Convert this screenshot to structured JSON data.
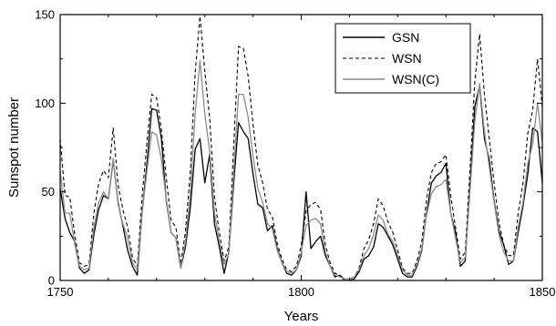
{
  "chart_data": {
    "type": "line",
    "title": "",
    "xlabel": "Years",
    "ylabel": "Sunspot number",
    "xlim": [
      1750,
      1850
    ],
    "ylim": [
      0,
      150
    ],
    "x_ticks": [
      1750,
      1800,
      1850
    ],
    "y_ticks": [
      0,
      50,
      100,
      150
    ],
    "grid": false,
    "legend_position": "top-right",
    "series": [
      {
        "name": "GSN",
        "color": "#000000",
        "style": "solid",
        "points": [
          [
            1750,
            52
          ],
          [
            1751,
            35
          ],
          [
            1752,
            27
          ],
          [
            1753,
            22
          ],
          [
            1754,
            7
          ],
          [
            1755,
            4
          ],
          [
            1756,
            6
          ],
          [
            1757,
            26
          ],
          [
            1758,
            40
          ],
          [
            1759,
            48
          ],
          [
            1760,
            46
          ],
          [
            1761,
            68
          ],
          [
            1762,
            44
          ],
          [
            1763,
            31
          ],
          [
            1764,
            17
          ],
          [
            1765,
            8
          ],
          [
            1766,
            3
          ],
          [
            1767,
            38
          ],
          [
            1768,
            66
          ],
          [
            1769,
            97
          ],
          [
            1770,
            96
          ],
          [
            1771,
            80
          ],
          [
            1772,
            45
          ],
          [
            1773,
            27
          ],
          [
            1774,
            24
          ],
          [
            1775,
            7
          ],
          [
            1776,
            19
          ],
          [
            1777,
            41
          ],
          [
            1778,
            74
          ],
          [
            1779,
            80
          ],
          [
            1780,
            55
          ],
          [
            1781,
            71
          ],
          [
            1782,
            32
          ],
          [
            1783,
            19
          ],
          [
            1784,
            4
          ],
          [
            1785,
            16
          ],
          [
            1786,
            55
          ],
          [
            1787,
            89
          ],
          [
            1788,
            84
          ],
          [
            1789,
            80
          ],
          [
            1790,
            60
          ],
          [
            1791,
            43
          ],
          [
            1792,
            41
          ],
          [
            1793,
            28
          ],
          [
            1794,
            31
          ],
          [
            1795,
            18
          ],
          [
            1796,
            10
          ],
          [
            1797,
            4
          ],
          [
            1798,
            3
          ],
          [
            1799,
            6
          ],
          [
            1800,
            14
          ],
          [
            1801,
            50
          ],
          [
            1802,
            18
          ],
          [
            1803,
            22
          ],
          [
            1804,
            25
          ],
          [
            1805,
            14
          ],
          [
            1806,
            8
          ],
          [
            1807,
            2
          ],
          [
            1808,
            3
          ],
          [
            1809,
            0
          ],
          [
            1810,
            0
          ],
          [
            1811,
            1
          ],
          [
            1812,
            5
          ],
          [
            1813,
            12
          ],
          [
            1814,
            14
          ],
          [
            1815,
            19
          ],
          [
            1816,
            32
          ],
          [
            1817,
            30
          ],
          [
            1818,
            25
          ],
          [
            1819,
            20
          ],
          [
            1820,
            12
          ],
          [
            1821,
            4
          ],
          [
            1822,
            2
          ],
          [
            1823,
            2
          ],
          [
            1824,
            8
          ],
          [
            1825,
            17
          ],
          [
            1826,
            38
          ],
          [
            1827,
            55
          ],
          [
            1828,
            59
          ],
          [
            1829,
            61
          ],
          [
            1830,
            66
          ],
          [
            1831,
            38
          ],
          [
            1832,
            27
          ],
          [
            1833,
            8
          ],
          [
            1834,
            11
          ],
          [
            1835,
            53
          ],
          [
            1836,
            98
          ],
          [
            1837,
            110
          ],
          [
            1838,
            80
          ],
          [
            1839,
            68
          ],
          [
            1840,
            45
          ],
          [
            1841,
            28
          ],
          [
            1842,
            20
          ],
          [
            1843,
            9
          ],
          [
            1844,
            11
          ],
          [
            1845,
            27
          ],
          [
            1846,
            42
          ],
          [
            1847,
            60
          ],
          [
            1848,
            86
          ],
          [
            1849,
            84
          ],
          [
            1850,
            55
          ]
        ]
      },
      {
        "name": "WSN",
        "color": "#000000",
        "style": "dashed",
        "points": [
          [
            1750,
            80
          ],
          [
            1751,
            48
          ],
          [
            1752,
            47
          ],
          [
            1753,
            26
          ],
          [
            1754,
            10
          ],
          [
            1755,
            8
          ],
          [
            1756,
            9
          ],
          [
            1757,
            38
          ],
          [
            1758,
            55
          ],
          [
            1759,
            62
          ],
          [
            1760,
            58
          ],
          [
            1761,
            86
          ],
          [
            1762,
            54
          ],
          [
            1763,
            40
          ],
          [
            1764,
            30
          ],
          [
            1765,
            13
          ],
          [
            1766,
            8
          ],
          [
            1767,
            47
          ],
          [
            1768,
            78
          ],
          [
            1769,
            105
          ],
          [
            1770,
            103
          ],
          [
            1771,
            85
          ],
          [
            1772,
            58
          ],
          [
            1773,
            34
          ],
          [
            1774,
            30
          ],
          [
            1775,
            9
          ],
          [
            1776,
            28
          ],
          [
            1777,
            61
          ],
          [
            1778,
            117
          ],
          [
            1779,
            149
          ],
          [
            1780,
            118
          ],
          [
            1781,
            92
          ],
          [
            1782,
            47
          ],
          [
            1783,
            27
          ],
          [
            1784,
            11
          ],
          [
            1785,
            19
          ],
          [
            1786,
            76
          ],
          [
            1787,
            132
          ],
          [
            1788,
            131
          ],
          [
            1789,
            115
          ],
          [
            1790,
            88
          ],
          [
            1791,
            65
          ],
          [
            1792,
            55
          ],
          [
            1793,
            40
          ],
          [
            1794,
            36
          ],
          [
            1795,
            21
          ],
          [
            1796,
            12
          ],
          [
            1797,
            6
          ],
          [
            1798,
            5
          ],
          [
            1799,
            8
          ],
          [
            1800,
            20
          ],
          [
            1801,
            39
          ],
          [
            1802,
            43
          ],
          [
            1803,
            44
          ],
          [
            1804,
            40
          ],
          [
            1805,
            20
          ],
          [
            1806,
            10
          ],
          [
            1807,
            4
          ],
          [
            1808,
            3
          ],
          [
            1809,
            1
          ],
          [
            1810,
            1
          ],
          [
            1811,
            2
          ],
          [
            1812,
            7
          ],
          [
            1813,
            18
          ],
          [
            1814,
            23
          ],
          [
            1815,
            32
          ],
          [
            1816,
            46
          ],
          [
            1817,
            42
          ],
          [
            1818,
            33
          ],
          [
            1819,
            27
          ],
          [
            1820,
            17
          ],
          [
            1821,
            7
          ],
          [
            1822,
            4
          ],
          [
            1823,
            4
          ],
          [
            1824,
            11
          ],
          [
            1825,
            22
          ],
          [
            1826,
            46
          ],
          [
            1827,
            61
          ],
          [
            1828,
            66
          ],
          [
            1829,
            67
          ],
          [
            1830,
            71
          ],
          [
            1831,
            48
          ],
          [
            1832,
            30
          ],
          [
            1833,
            12
          ],
          [
            1834,
            16
          ],
          [
            1835,
            62
          ],
          [
            1836,
            112
          ],
          [
            1837,
            139
          ],
          [
            1838,
            105
          ],
          [
            1839,
            80
          ],
          [
            1840,
            55
          ],
          [
            1841,
            33
          ],
          [
            1842,
            20
          ],
          [
            1843,
            14
          ],
          [
            1844,
            14
          ],
          [
            1845,
            38
          ],
          [
            1846,
            55
          ],
          [
            1847,
            83
          ],
          [
            1848,
            96
          ],
          [
            1849,
            125
          ],
          [
            1850,
            98
          ]
        ]
      },
      {
        "name": "WSN(C)",
        "color": "#8c8c8c",
        "style": "solid",
        "points": [
          [
            1750,
            62
          ],
          [
            1751,
            38
          ],
          [
            1752,
            38
          ],
          [
            1753,
            21
          ],
          [
            1754,
            8
          ],
          [
            1755,
            6
          ],
          [
            1756,
            7
          ],
          [
            1757,
            30
          ],
          [
            1758,
            44
          ],
          [
            1759,
            50
          ],
          [
            1760,
            46
          ],
          [
            1761,
            69
          ],
          [
            1762,
            43
          ],
          [
            1763,
            32
          ],
          [
            1764,
            24
          ],
          [
            1765,
            10
          ],
          [
            1766,
            6
          ],
          [
            1767,
            38
          ],
          [
            1768,
            62
          ],
          [
            1769,
            84
          ],
          [
            1770,
            82
          ],
          [
            1771,
            68
          ],
          [
            1772,
            46
          ],
          [
            1773,
            27
          ],
          [
            1774,
            24
          ],
          [
            1775,
            7
          ],
          [
            1776,
            22
          ],
          [
            1777,
            49
          ],
          [
            1778,
            94
          ],
          [
            1779,
            124
          ],
          [
            1780,
            94
          ],
          [
            1781,
            73
          ],
          [
            1782,
            38
          ],
          [
            1783,
            22
          ],
          [
            1784,
            9
          ],
          [
            1785,
            15
          ],
          [
            1786,
            61
          ],
          [
            1787,
            105
          ],
          [
            1788,
            105
          ],
          [
            1789,
            92
          ],
          [
            1790,
            70
          ],
          [
            1791,
            52
          ],
          [
            1792,
            44
          ],
          [
            1793,
            32
          ],
          [
            1794,
            29
          ],
          [
            1795,
            17
          ],
          [
            1796,
            10
          ],
          [
            1797,
            5
          ],
          [
            1798,
            4
          ],
          [
            1799,
            6
          ],
          [
            1800,
            16
          ],
          [
            1801,
            31
          ],
          [
            1802,
            34
          ],
          [
            1803,
            35
          ],
          [
            1804,
            32
          ],
          [
            1805,
            16
          ],
          [
            1806,
            8
          ],
          [
            1807,
            3
          ],
          [
            1808,
            2
          ],
          [
            1809,
            1
          ],
          [
            1810,
            1
          ],
          [
            1811,
            2
          ],
          [
            1812,
            6
          ],
          [
            1813,
            14
          ],
          [
            1814,
            18
          ],
          [
            1815,
            26
          ],
          [
            1816,
            37
          ],
          [
            1817,
            34
          ],
          [
            1818,
            26
          ],
          [
            1819,
            22
          ],
          [
            1820,
            14
          ],
          [
            1821,
            6
          ],
          [
            1822,
            3
          ],
          [
            1823,
            3
          ],
          [
            1824,
            9
          ],
          [
            1825,
            18
          ],
          [
            1826,
            37
          ],
          [
            1827,
            49
          ],
          [
            1828,
            53
          ],
          [
            1829,
            54
          ],
          [
            1830,
            57
          ],
          [
            1831,
            38
          ],
          [
            1832,
            24
          ],
          [
            1833,
            10
          ],
          [
            1834,
            13
          ],
          [
            1835,
            50
          ],
          [
            1836,
            90
          ],
          [
            1837,
            111
          ],
          [
            1838,
            84
          ],
          [
            1839,
            64
          ],
          [
            1840,
            44
          ],
          [
            1841,
            26
          ],
          [
            1842,
            16
          ],
          [
            1843,
            11
          ],
          [
            1844,
            11
          ],
          [
            1845,
            30
          ],
          [
            1846,
            44
          ],
          [
            1847,
            66
          ],
          [
            1848,
            77
          ],
          [
            1849,
            100
          ],
          [
            1850,
            78
          ]
        ]
      }
    ]
  }
}
